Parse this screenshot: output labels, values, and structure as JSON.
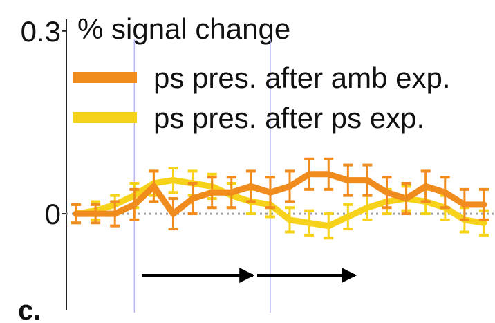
{
  "panel_label": "c.",
  "chart_data": {
    "type": "line",
    "ylabel": "% signal change",
    "yticks": [
      {
        "label": "0.3",
        "value": 0.3
      },
      {
        "label": "0",
        "value": 0
      }
    ],
    "ylim": [
      -0.16,
      0.31
    ],
    "xlim": [
      0,
      22
    ],
    "zero_line": "dotted",
    "vertical_markers": [
      3.5,
      10.5
    ],
    "legend": {
      "position": "top",
      "entries": [
        {
          "label": "ps pres. after amb exp.",
          "color": "#f08c1e"
        },
        {
          "label": "ps pres. after ps exp.",
          "color": "#f7d21a"
        }
      ]
    },
    "series": [
      {
        "name": "ps pres. after amb exp.",
        "color": "#f08c1e",
        "x": [
          0.5,
          1.5,
          2.5,
          3.5,
          4.5,
          5.5,
          6.5,
          7.5,
          8.5,
          9.5,
          10.5,
          11.5,
          12.5,
          13.5,
          14.5,
          15.5,
          16.5,
          17.5,
          18.5,
          19.5,
          20.5,
          21.5
        ],
        "y": [
          0.0,
          0.0,
          0.0,
          0.015,
          0.045,
          0.0,
          0.025,
          0.035,
          0.035,
          0.045,
          0.035,
          0.045,
          0.065,
          0.065,
          0.055,
          0.055,
          0.035,
          0.025,
          0.045,
          0.035,
          0.015,
          0.015
        ],
        "err": [
          0.015,
          0.015,
          0.02,
          0.025,
          0.025,
          0.025,
          0.025,
          0.025,
          0.025,
          0.025,
          0.025,
          0.025,
          0.025,
          0.025,
          0.025,
          0.025,
          0.025,
          0.025,
          0.025,
          0.025,
          0.025,
          0.025
        ]
      },
      {
        "name": "ps pres. after ps exp.",
        "color": "#f7d21a",
        "x": [
          0.5,
          1.5,
          2.5,
          3.5,
          4.5,
          5.5,
          6.5,
          7.5,
          8.5,
          9.5,
          10.5,
          11.5,
          12.5,
          13.5,
          14.5,
          15.5,
          16.5,
          17.5,
          18.5,
          19.5,
          20.5,
          21.5
        ],
        "y": [
          0.0,
          0.005,
          0.015,
          0.03,
          0.05,
          0.055,
          0.05,
          0.045,
          0.03,
          0.02,
          0.015,
          -0.01,
          -0.015,
          -0.02,
          -0.005,
          0.01,
          0.02,
          0.025,
          0.02,
          0.01,
          -0.01,
          -0.015
        ],
        "err": [
          0.015,
          0.015,
          0.015,
          0.02,
          0.02,
          0.02,
          0.02,
          0.02,
          0.02,
          0.02,
          0.02,
          0.02,
          0.02,
          0.02,
          0.02,
          0.02,
          0.02,
          0.02,
          0.02,
          0.02,
          0.02,
          0.02
        ]
      }
    ]
  }
}
